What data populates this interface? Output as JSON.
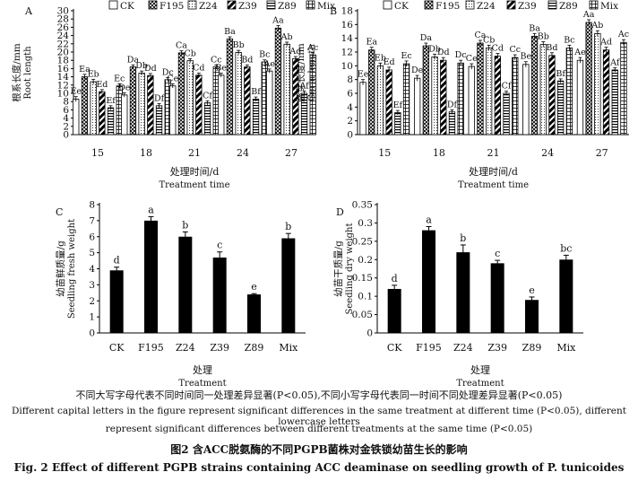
{
  "legend_labels": [
    "CK",
    "F195",
    "Z24",
    "Z39",
    "Z89",
    "Mix"
  ],
  "chart_data": [
    {
      "panel": "A",
      "type": "bar",
      "ylabel_zh": "根系长度/mm",
      "ylabel_en": "Root length",
      "xlabel_zh": "处理时间/d",
      "xlabel_en": "Treatment time",
      "categories": [
        "15",
        "18",
        "21",
        "24",
        "27"
      ],
      "ylim": [
        0,
        30
      ],
      "yticks": [
        0,
        2,
        4,
        6,
        8,
        10,
        12,
        14,
        16,
        18,
        20,
        22,
        24,
        26,
        28,
        30
      ],
      "series": [
        {
          "name": "CK",
          "values": [
            8.6,
            9.6,
            11.8,
            14.4,
            15.4
          ],
          "errors": [
            0.6,
            0.5,
            0.5,
            0.5,
            0.5
          ],
          "labels": [
            "Ee",
            "De",
            "Ce",
            "Be",
            "Ae"
          ]
        },
        {
          "name": "F195",
          "values": [
            14.0,
            16.4,
            19.8,
            23.2,
            25.8
          ],
          "errors": [
            0.6,
            0.5,
            0.5,
            0.5,
            0.6
          ],
          "labels": [
            "Ea",
            "Da",
            "Ca",
            "Ba",
            "Aa"
          ]
        },
        {
          "name": "Z24",
          "values": [
            12.8,
            14.9,
            17.9,
            19.9,
            21.9
          ],
          "errors": [
            0.6,
            0.5,
            0.5,
            0.5,
            0.5
          ],
          "labels": [
            "Eb",
            "Db",
            "Cb",
            "Bb",
            "Ab"
          ]
        },
        {
          "name": "Z39",
          "values": [
            10.4,
            14.3,
            14.4,
            16.4,
            18.4
          ],
          "errors": [
            0.5,
            0.5,
            0.5,
            0.5,
            0.5
          ],
          "labels": [
            "Ed",
            "Dd",
            "Cd",
            "Bd",
            "Ad"
          ]
        },
        {
          "name": "Z89",
          "values": [
            6.5,
            7.0,
            7.7,
            8.6,
            10.0
          ],
          "errors": [
            0.5,
            0.5,
            0.5,
            0.5,
            0.5
          ],
          "labels": [
            "Ef",
            "Df",
            "Cf",
            "Bf",
            "Af"
          ]
        },
        {
          "name": "Mix",
          "values": [
            11.8,
            13.3,
            16.4,
            17.6,
            19.3
          ],
          "errors": [
            0.5,
            0.5,
            0.5,
            0.5,
            0.5
          ],
          "labels": [
            "Ec",
            "Dc",
            "Cc",
            "Bc",
            "Ac"
          ]
        }
      ]
    },
    {
      "panel": "B",
      "type": "bar",
      "ylabel_zh": "胚芽长度/mm",
      "ylabel_en": "Germ length",
      "xlabel_zh": "处理时间/d",
      "xlabel_en": "Treatment time",
      "categories": [
        "15",
        "18",
        "21",
        "24",
        "27"
      ],
      "ylim": [
        0,
        18
      ],
      "yticks": [
        0,
        2,
        4,
        6,
        8,
        10,
        12,
        14,
        16,
        18
      ],
      "series": [
        {
          "name": "CK",
          "values": [
            7.6,
            8.2,
            9.9,
            10.2,
            10.8
          ],
          "errors": [
            0.4,
            0.4,
            0.4,
            0.4,
            0.4
          ],
          "labels": [
            "Ee",
            "De",
            "Ce",
            "Be",
            "Ae"
          ]
        },
        {
          "name": "F195",
          "values": [
            12.3,
            12.9,
            13.3,
            14.3,
            16.3
          ],
          "errors": [
            0.4,
            0.4,
            0.4,
            0.4,
            0.4
          ],
          "labels": [
            "Ea",
            "Da",
            "Ca",
            "Ba",
            "Aa"
          ]
        },
        {
          "name": "Z24",
          "values": [
            10.0,
            11.3,
            12.6,
            13.1,
            14.7
          ],
          "errors": [
            0.4,
            0.4,
            0.4,
            0.4,
            0.4
          ],
          "labels": [
            "Eb",
            "Db",
            "Cb",
            "Bb",
            "Ab"
          ]
        },
        {
          "name": "Z39",
          "values": [
            9.4,
            10.8,
            11.4,
            11.5,
            12.3
          ],
          "errors": [
            0.4,
            0.4,
            0.4,
            0.4,
            0.4
          ],
          "labels": [
            "Ed",
            "Dd",
            "Cd",
            "Bd",
            "Ad"
          ]
        },
        {
          "name": "Z89",
          "values": [
            3.2,
            3.3,
            6.0,
            7.8,
            9.4
          ],
          "errors": [
            0.3,
            0.3,
            0.3,
            0.3,
            0.3
          ],
          "labels": [
            "Ef",
            "Df",
            "Cf",
            "Bf",
            "Af"
          ]
        },
        {
          "name": "Mix",
          "values": [
            10.3,
            10.4,
            11.2,
            12.6,
            13.4
          ],
          "errors": [
            0.4,
            0.4,
            0.4,
            0.4,
            0.4
          ],
          "labels": [
            "Ec",
            "Dc",
            "Cc",
            "Bc",
            "Ac"
          ]
        }
      ]
    },
    {
      "panel": "C",
      "type": "bar",
      "ylabel_zh": "幼苗鲜质量/g",
      "ylabel_en": "Seedling fresh weight",
      "xlabel_zh": "处理",
      "xlabel_en": "Treatment",
      "categories": [
        "CK",
        "F195",
        "Z24",
        "Z39",
        "Z89",
        "Mix"
      ],
      "ylim": [
        0,
        8
      ],
      "yticks": [
        0,
        1,
        2,
        3,
        4,
        5,
        6,
        7,
        8
      ],
      "values": [
        3.9,
        7.0,
        6.0,
        4.7,
        2.4,
        5.9
      ],
      "errors": [
        0.2,
        0.25,
        0.3,
        0.35,
        0.05,
        0.3
      ],
      "labels": [
        "d",
        "a",
        "b",
        "c",
        "e",
        "b"
      ]
    },
    {
      "panel": "D",
      "type": "bar",
      "ylabel_zh": "幼苗干质量/g",
      "ylabel_en": "Seedling dry weight",
      "xlabel_zh": "处理",
      "xlabel_en": "Treatment",
      "categories": [
        "CK",
        "F195",
        "Z24",
        "Z39",
        "Z89",
        "Mix"
      ],
      "ylim": [
        0,
        0.35
      ],
      "yticks": [
        0,
        0.05,
        0.1,
        0.15,
        0.2,
        0.25,
        0.3,
        0.35
      ],
      "values": [
        0.12,
        0.28,
        0.22,
        0.19,
        0.09,
        0.2
      ],
      "errors": [
        0.01,
        0.01,
        0.02,
        0.008,
        0.008,
        0.012
      ],
      "labels": [
        "d",
        "a",
        "b",
        "c",
        "e",
        "bc"
      ]
    }
  ],
  "captions": {
    "note_zh": "不同大写字母代表不同时间同一处理差异显著(P<0.05),不同小写字母代表同一时间不同处理差异显著(P<0.05)",
    "note_en_1": "Different capital letters in the figure represent significant differences in the same treatment at different time (P<0.05), different lowercase letters",
    "note_en_2": "represent significant differences between different treatments at the same time (P<0.05)",
    "title_zh": "图2  含ACC脱氨酶的不同PGPB菌株对金铁锁幼苗生长的影响",
    "title_en": "Fig. 2    Effect of different PGPB strains containing ACC deaminase on seedling growth of P. tunicoides"
  }
}
